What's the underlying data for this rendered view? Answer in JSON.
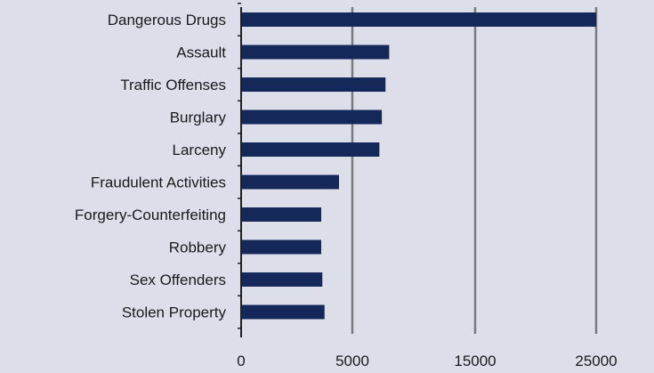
{
  "chart_data": {
    "type": "bar",
    "orientation": "horizontal",
    "title": "",
    "xlabel": "",
    "ylabel": "",
    "categories": [
      "Dangerous Drugs",
      "Assault",
      "Traffic Offenses",
      "Burglary",
      "Larceny",
      "Fraudulent Activities",
      "Forgery-Counterfeiting",
      "Robbery",
      "Sex Offenders",
      "Stolen Property"
    ],
    "values": [
      25000,
      8000,
      7700,
      7400,
      7200,
      4400,
      3600,
      3600,
      3650,
      3750
    ],
    "x_ticks": [
      "0",
      "5000",
      "15000",
      "25000"
    ],
    "x_tick_values": [
      0,
      5000,
      15000,
      25000
    ],
    "grid": "vertical",
    "colors": {
      "bar": "#15285a",
      "grid": "#7a7a7a",
      "background": "#dcdfea",
      "axis": "#222222"
    }
  }
}
